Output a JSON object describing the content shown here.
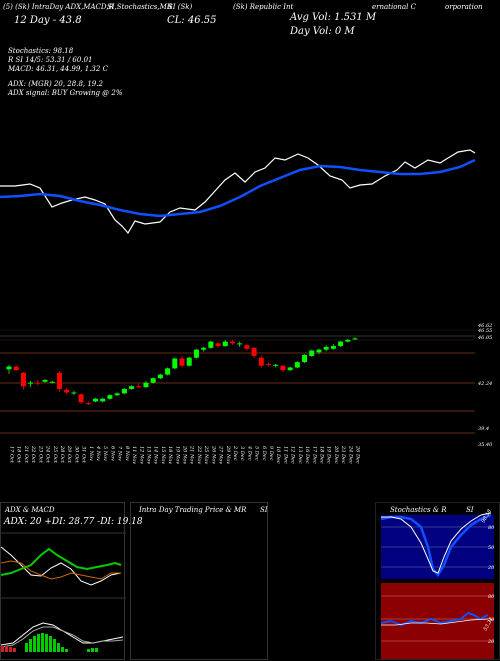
{
  "header": {
    "line1": "(5) (Sk) IntraDay ADX,MACD,R",
    "line1b": "SI,Stochastics,MR",
    "line1c": "SI (Sk)",
    "line1d": "(Sk) Republic Int",
    "line1e": "ernational C",
    "line1f": "orporation",
    "open_label": "Day",
    "open_value": "12",
    "chg": "43.8",
    "close_text": "CL: 46.55",
    "avg_vol": "Avg Vol: 1.531 M",
    "day_vol": "Day Vol: 0   M"
  },
  "indicators": {
    "stochastics": "Stochastics: 98.18",
    "rsi": "R                  SI 14/5: 53.31 / 60.01",
    "macd": "MACD: 46.31, 44.99, 1.32  C",
    "adx": "ADX:                         (MGR) 20, 28.8, 19.2",
    "adx_signal": "ADX  signal:                  BUY Growing @ 2%"
  },
  "price_axis": {
    "labels": [
      "46.62",
      "46.55",
      "46.05",
      "42.24",
      "39.4",
      "35.40"
    ]
  },
  "dates": [
    "17 Oct",
    "18 Oct",
    "21 Oct",
    "22 Oct",
    "23 Oct",
    "24 Oct",
    "25 Oct",
    "28 Oct",
    "29 Oct",
    "30 Oct",
    "31 Oct",
    "1 Nov",
    "4 Nov",
    "5 Nov",
    "6 Nov",
    "7 Nov",
    "8 Nov",
    "11 Nov",
    "12 Nov",
    "13 Nov",
    "14 Nov",
    "15 Nov",
    "18 Nov",
    "19 Nov",
    "20 Nov",
    "21 Nov",
    "22 Nov",
    "25 Nov",
    "26 Nov",
    "27 Nov",
    "29 Nov",
    "2 Dec",
    "3 Dec",
    "4 Dec",
    "5 Dec",
    "6 Dec",
    "9 Dec",
    "10 Dec",
    "11 Dec",
    "12 Dec",
    "13 Dec",
    "16 Dec",
    "17 Dec",
    "18 Dec",
    "19 Dec",
    "20 Dec",
    "23 Dec",
    "24 Dec",
    "26 Dec"
  ],
  "panels": {
    "adx_title": "ADX  & MACD",
    "adx_values": "ADX: 20  +DI: 28.77  -DI: 19.18",
    "intraday_title": "Intra  Day Trading Price  & MR",
    "intraday_title_b": "SI",
    "stoch_title": "Stochastics & R",
    "stoch_title_b": "SI",
    "stoch_levels": [
      "80",
      "50",
      "20"
    ],
    "stoch_value": "98.18",
    "rsi_levels": [
      "80",
      "50",
      "20"
    ],
    "rsi_value": "53.31"
  },
  "colors": {
    "up": "#00ff00",
    "down": "#ff0000",
    "ma": "#1050ff",
    "price_line": "#ffffff",
    "rsi_bg": "#8b0000",
    "stoch_bg": "#000080"
  },
  "chart_data": {
    "type": "candlestick",
    "ylim": [
      35.4,
      47.5
    ],
    "candles": [
      [
        43.1,
        43.6,
        42.6,
        43.4
      ],
      [
        43.4,
        43.5,
        42.9,
        43.0
      ],
      [
        42.7,
        42.8,
        40.8,
        41.2
      ],
      [
        41.5,
        41.8,
        41.1,
        41.6
      ],
      [
        41.6,
        41.9,
        41.3,
        41.5
      ],
      [
        41.7,
        42.0,
        41.6,
        41.9
      ],
      [
        41.6,
        41.8,
        41.5,
        41.7
      ],
      [
        42.7,
        42.9,
        40.6,
        40.9
      ],
      [
        40.8,
        41.0,
        40.3,
        40.5
      ],
      [
        40.4,
        40.7,
        40.2,
        40.5
      ],
      [
        40.3,
        40.4,
        39.2,
        39.4
      ],
      [
        39.3,
        39.5,
        39.1,
        39.2
      ],
      [
        39.5,
        39.9,
        39.4,
        39.8
      ],
      [
        39.5,
        39.9,
        39.4,
        39.8
      ],
      [
        39.8,
        40.3,
        39.7,
        40.2
      ],
      [
        40.2,
        40.5,
        40.1,
        40.4
      ],
      [
        40.4,
        41.0,
        40.3,
        40.9
      ],
      [
        40.9,
        41.3,
        40.8,
        41.2
      ],
      [
        41.2,
        41.5,
        41.0,
        41.1
      ],
      [
        41.1,
        41.8,
        41.0,
        41.6
      ],
      [
        41.6,
        42.2,
        41.5,
        42.1
      ],
      [
        42.1,
        42.6,
        42.0,
        42.5
      ],
      [
        42.5,
        43.3,
        42.4,
        43.2
      ],
      [
        43.2,
        44.4,
        43.1,
        44.3
      ],
      [
        44.3,
        44.6,
        43.3,
        43.5
      ],
      [
        43.5,
        44.5,
        43.4,
        44.4
      ],
      [
        44.4,
        45.4,
        44.3,
        45.3
      ],
      [
        45.3,
        45.6,
        45.1,
        45.5
      ],
      [
        45.5,
        46.3,
        45.4,
        46.2
      ],
      [
        46.0,
        46.1,
        45.5,
        45.7
      ],
      [
        45.7,
        46.4,
        45.6,
        46.2
      ],
      [
        46.2,
        46.4,
        45.8,
        46.0
      ],
      [
        45.9,
        46.2,
        45.6,
        46.0
      ],
      [
        45.8,
        45.9,
        45.2,
        45.4
      ],
      [
        45.5,
        45.6,
        44.4,
        44.6
      ],
      [
        44.4,
        44.6,
        43.3,
        43.5
      ],
      [
        43.7,
        43.9,
        43.4,
        43.6
      ],
      [
        43.5,
        43.7,
        43.3,
        43.6
      ],
      [
        43.5,
        43.6,
        42.8,
        43.0
      ],
      [
        43.0,
        43.4,
        42.9,
        43.3
      ],
      [
        43.3,
        44.0,
        43.2,
        43.9
      ],
      [
        43.9,
        44.8,
        43.8,
        44.7
      ],
      [
        44.6,
        45.3,
        44.5,
        45.2
      ],
      [
        45.0,
        45.4,
        44.8,
        45.3
      ],
      [
        45.3,
        45.8,
        45.1,
        45.6
      ],
      [
        45.4,
        45.9,
        45.3,
        45.7
      ],
      [
        45.7,
        46.3,
        45.6,
        46.2
      ],
      [
        46.2,
        46.5,
        46.1,
        46.4
      ],
      [
        46.5,
        46.7,
        46.4,
        46.55
      ]
    ]
  }
}
